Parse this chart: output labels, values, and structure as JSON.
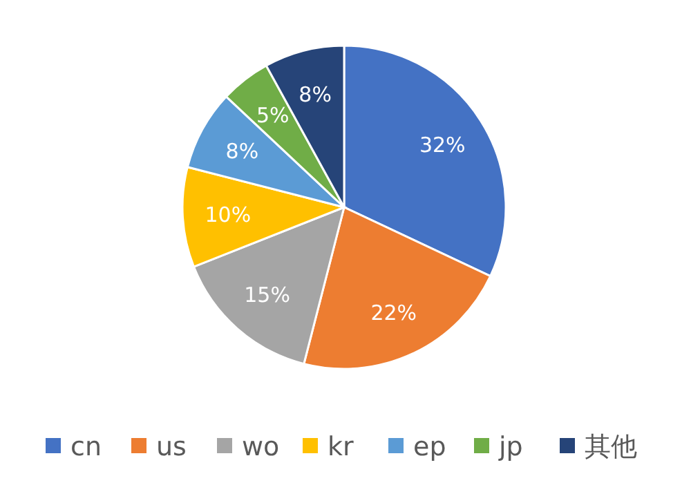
{
  "chart_data": {
    "type": "pie",
    "categories": [
      "cn",
      "us",
      "wo",
      "kr",
      "ep",
      "jp",
      "其他"
    ],
    "values": [
      32,
      22,
      15,
      10,
      8,
      5,
      8
    ],
    "colors": [
      "#4472c4",
      "#ed7d31",
      "#a5a5a5",
      "#ffc000",
      "#5b9bd5",
      "#70ad47",
      "#264478"
    ],
    "value_labels": [
      "32%",
      "22%",
      "15%",
      "10%",
      "8%",
      "5%",
      "8%"
    ],
    "legend": "bottom"
  }
}
